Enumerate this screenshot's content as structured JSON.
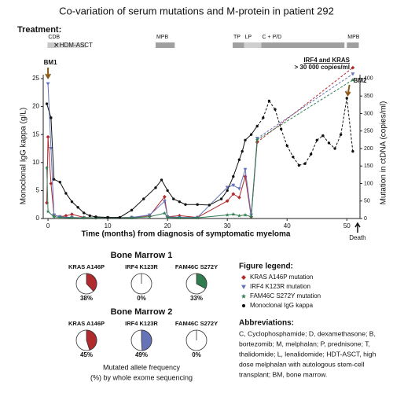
{
  "chart_data": [
    {
      "type": "line",
      "title": "Co-variation of serum mutations and M-protein in patient 292",
      "treatment_label": "Treatment:",
      "treatments": [
        {
          "label": "CDB",
          "start": -0.1,
          "end": 1.4,
          "color": "#c8c8c8"
        },
        {
          "label": "HDM-ASCT",
          "start": 1.4,
          "end": 6.4,
          "color": "#dcdcdc",
          "label_position": "inside"
        },
        {
          "label": "MPB",
          "start": 18,
          "end": 21.2,
          "color": "#a0a0a0"
        },
        {
          "label": "TP",
          "start": 30.9,
          "end": 32.8,
          "color": "#a0a0a0"
        },
        {
          "label": "LP",
          "start": 32.8,
          "end": 35.7,
          "color": "#cfcfcf"
        },
        {
          "label": "C + P/D",
          "start": 35.7,
          "end": 49.6,
          "color": "#a0a0a0"
        },
        {
          "label": "MPB",
          "start": 50,
          "end": 52,
          "color": "#a0a0a0"
        }
      ],
      "xlabel": "Time (months) from diagnosis of symptomatic myeloma",
      "ylabel": "Monoclonal IgG kappa (g/L)",
      "y2label": "Mutation in ctDNA (copies/ml)",
      "xlim": [
        -0.8,
        52.2
      ],
      "xticks": [
        0,
        10,
        20,
        30,
        40,
        50
      ],
      "ylim": [
        0,
        25.7
      ],
      "yticks": [
        0,
        5,
        10,
        15,
        20,
        25
      ],
      "y2lim": [
        0,
        411
      ],
      "y2ticks": [
        0,
        50,
        100,
        150,
        200,
        250,
        300,
        350,
        400
      ],
      "dash_from_x": 35,
      "annotations": [
        {
          "text": "BM1",
          "x": 0,
          "color": "#8b5a1a",
          "position": "top"
        },
        {
          "text": "BM2",
          "x": 50.7,
          "color": "#8b5a1a",
          "position": "right"
        },
        {
          "text": "Death",
          "x": 51.8,
          "color": "#111",
          "position": "bottom"
        }
      ],
      "note_lines": [
        "IRF4 and KRAS",
        "> 30 000 copies/ml"
      ],
      "legend_title": "Figure legend:",
      "series": [
        {
          "name": "KRAS A146P mutation",
          "color": "#b02a2e",
          "marker": "diamond",
          "axis": "y2",
          "x": [
            -0.2,
            0,
            0.5,
            1,
            2,
            3,
            4,
            6,
            8,
            10,
            14,
            17,
            19.5,
            20,
            22,
            25,
            30,
            31,
            32,
            33,
            34,
            35,
            51
          ],
          "values": [
            45,
            233,
            100,
            10,
            5,
            8,
            12,
            3,
            2,
            2,
            3,
            8,
            62,
            5,
            8,
            3,
            50,
            70,
            60,
            120,
            5,
            218,
            431
          ]
        },
        {
          "name": "IRF4 K123R mutation",
          "color": "#6573b8",
          "marker": "triangle",
          "axis": "y2",
          "x": [
            0,
            0.5,
            1,
            2,
            4,
            6,
            8,
            10,
            14,
            17,
            19.5,
            20,
            22,
            25,
            30,
            31,
            32,
            33,
            34,
            35,
            51
          ],
          "values": [
            385,
            200,
            10,
            5,
            3,
            2,
            2,
            2,
            3,
            10,
            49,
            5,
            3,
            3,
            89,
            95,
            85,
            140,
            10,
            229,
            413
          ]
        },
        {
          "name": "FAM46C S272Y mutation",
          "color": "#2f7d4f",
          "marker": "star",
          "axis": "y2",
          "x": [
            -0.2,
            0,
            1,
            2,
            4,
            6,
            8,
            10,
            14,
            17,
            19.5,
            20,
            22,
            25,
            30,
            31,
            32,
            33,
            34,
            35,
            51
          ],
          "values": [
            145,
            20,
            5,
            3,
            2,
            2,
            2,
            2,
            2,
            5,
            15,
            3,
            2,
            2,
            10,
            12,
            8,
            10,
            5,
            225,
            396
          ]
        },
        {
          "name": "Monoclonal IgG kappa",
          "color": "#111111",
          "marker": "circle",
          "axis": "y",
          "x": [
            -0.2,
            0.5,
            1,
            2,
            3,
            4,
            5,
            6,
            7,
            8,
            10,
            12,
            14,
            16,
            18,
            19,
            20,
            21,
            22,
            23,
            25,
            27,
            29,
            30,
            31,
            32,
            32.5,
            33,
            34,
            35,
            36,
            37,
            38,
            39,
            40,
            41,
            42,
            43,
            44,
            45,
            46,
            47,
            48,
            49,
            50,
            51
          ],
          "values": [
            20.5,
            18,
            7,
            6.5,
            4.5,
            3,
            2,
            1,
            0.5,
            0.3,
            0.2,
            0.2,
            1.5,
            3.5,
            5.5,
            6.9,
            5,
            3.5,
            3,
            2.5,
            2.5,
            2.4,
            3.5,
            5,
            7.5,
            10.5,
            12,
            14,
            15,
            16.5,
            18,
            21,
            19.5,
            16,
            13,
            11,
            9.5,
            9.8,
            11.5,
            14,
            14.8,
            13.5,
            12.5,
            15,
            21.5,
            12
          ]
        }
      ]
    },
    {
      "type": "pie",
      "title": "Bone Marrow 1",
      "title_color": "#a0651f",
      "categories": [
        "KRAS A146P",
        "IRF4 K123R",
        "FAM46C S272Y"
      ],
      "colors": [
        "#b02a2e",
        "#6573b8",
        "#2f7d4f"
      ],
      "values": [
        38,
        0,
        33
      ],
      "value_labels": [
        "38%",
        "0%",
        "33%"
      ]
    },
    {
      "type": "pie",
      "title": "Bone Marrow 2",
      "title_color": "#a0651f",
      "categories": [
        "KRAS A146P",
        "IRF4 K123R",
        "FAM46C S272Y"
      ],
      "colors": [
        "#b02a2e",
        "#6573b8",
        "#2f7d4f"
      ],
      "values": [
        45,
        49,
        0
      ],
      "value_labels": [
        "45%",
        "49%",
        "0%"
      ]
    }
  ],
  "footnote": [
    "Mutated allele frequency",
    "(%) by whole exome sequencing"
  ],
  "abbreviations": {
    "title": "Abbreviations:",
    "lines": [
      "C, Cyclophosphamide; D, dexamethasone; B,",
      "bortezomib; M, melphalan; P, prednisone; T,",
      "thalidomide; L, lenalidomide; HDT-ASCT, high",
      "dose melphalan with autologous stem-cell",
      "transplant; BM, bone marrow."
    ]
  }
}
